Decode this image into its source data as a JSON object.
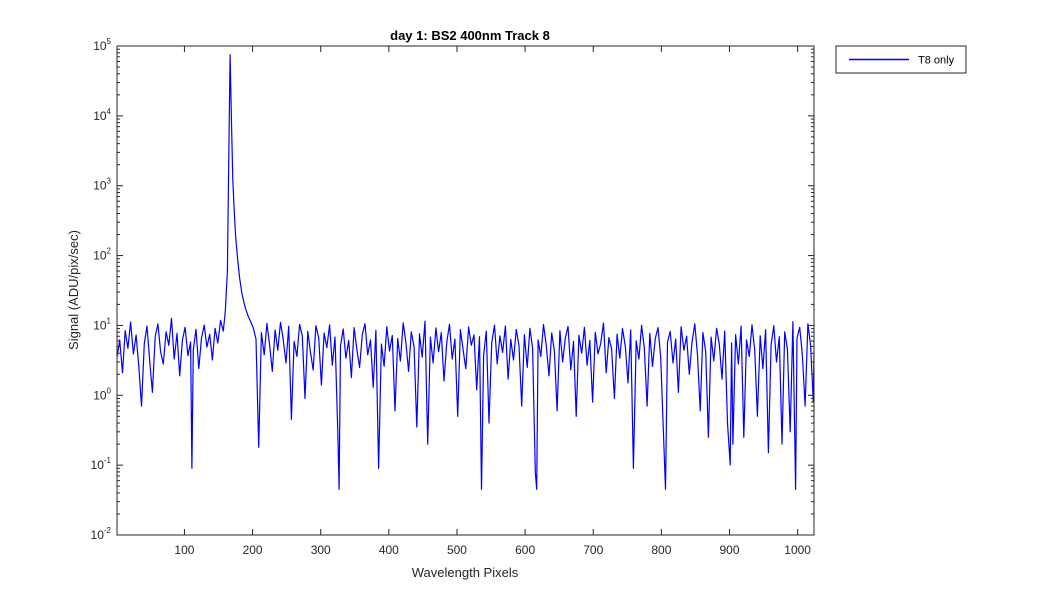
{
  "chart_data": {
    "type": "line",
    "title": "day 1: BS2  400nm  Track 8",
    "xlabel": "Wavelength Pixels",
    "ylabel": "Signal (ADU/pix/sec)",
    "xlim": [
      1,
      1024
    ],
    "ylim": [
      0.01,
      100000
    ],
    "yscale": "log",
    "grid": false,
    "legend_position": "outside-top-right",
    "x_ticks": [
      100,
      200,
      300,
      400,
      500,
      600,
      700,
      800,
      900,
      1000
    ],
    "y_ticks": [
      {
        "base": "10",
        "exp": "-2",
        "value": 0.01
      },
      {
        "base": "10",
        "exp": "-1",
        "value": 0.1
      },
      {
        "base": "10",
        "exp": "0",
        "value": 1
      },
      {
        "base": "10",
        "exp": "1",
        "value": 10
      },
      {
        "base": "10",
        "exp": "2",
        "value": 100
      },
      {
        "base": "10",
        "exp": "3",
        "value": 1000
      },
      {
        "base": "10",
        "exp": "4",
        "value": 10000
      },
      {
        "base": "10",
        "exp": "5",
        "value": 100000
      }
    ],
    "series": [
      {
        "name": "T8 only",
        "color": "#0000ff",
        "peak": {
          "x": 167,
          "y": 75000
        },
        "points": [
          [
            1,
            3.5
          ],
          [
            5,
            6.2
          ],
          [
            9,
            2.1
          ],
          [
            13,
            8.4
          ],
          [
            17,
            4.7
          ],
          [
            21,
            11.2
          ],
          [
            25,
            3.9
          ],
          [
            29,
            7.3
          ],
          [
            33,
            2.6
          ],
          [
            37,
            0.7
          ],
          [
            41,
            5.5
          ],
          [
            45,
            9.8
          ],
          [
            49,
            3.1
          ],
          [
            53,
            1.1
          ],
          [
            57,
            6.9
          ],
          [
            61,
            10.5
          ],
          [
            65,
            4.2
          ],
          [
            69,
            2.8
          ],
          [
            73,
            8.1
          ],
          [
            77,
            5.2
          ],
          [
            81,
            12.6
          ],
          [
            85,
            3.3
          ],
          [
            89,
            7.7
          ],
          [
            93,
            1.9
          ],
          [
            97,
            6.1
          ],
          [
            101,
            9.4
          ],
          [
            105,
            3.7
          ],
          [
            109,
            5.8
          ],
          [
            111,
            0.09
          ],
          [
            113,
            4.5
          ],
          [
            117,
            8.8
          ],
          [
            121,
            2.4
          ],
          [
            125,
            6.6
          ],
          [
            129,
            10.1
          ],
          [
            133,
            4.9
          ],
          [
            137,
            7.5
          ],
          [
            141,
            3.2
          ],
          [
            145,
            9.1
          ],
          [
            149,
            5.6
          ],
          [
            153,
            11.8
          ],
          [
            157,
            8.3
          ],
          [
            160,
            16
          ],
          [
            163,
            60
          ],
          [
            165,
            2000
          ],
          [
            167,
            75000
          ],
          [
            169,
            8000
          ],
          [
            171,
            1200
          ],
          [
            173,
            450
          ],
          [
            175,
            190
          ],
          [
            178,
            90
          ],
          [
            181,
            48
          ],
          [
            184,
            30
          ],
          [
            187,
            22
          ],
          [
            190,
            17
          ],
          [
            193,
            14
          ],
          [
            197,
            11.5
          ],
          [
            201,
            9.2
          ],
          [
            205,
            6.4
          ],
          [
            209,
            0.18
          ],
          [
            213,
            7.9
          ],
          [
            217,
            3.8
          ],
          [
            221,
            10.7
          ],
          [
            225,
            5.3
          ],
          [
            229,
            2.2
          ],
          [
            233,
            8.6
          ],
          [
            237,
            4.4
          ],
          [
            241,
            11.1
          ],
          [
            245,
            6.3
          ],
          [
            249,
            2.9
          ],
          [
            253,
            9.7
          ],
          [
            257,
            0.45
          ],
          [
            261,
            5.9
          ],
          [
            265,
            3.6
          ],
          [
            269,
            10.3
          ],
          [
            273,
            7.1
          ],
          [
            277,
            0.9
          ],
          [
            281,
            8.2
          ],
          [
            285,
            4.1
          ],
          [
            289,
            2.3
          ],
          [
            293,
            9.9
          ],
          [
            297,
            6.7
          ],
          [
            301,
            1.4
          ],
          [
            305,
            7.8
          ],
          [
            309,
            4.8
          ],
          [
            313,
            10.2
          ],
          [
            317,
            2.7
          ],
          [
            321,
            6.8
          ],
          [
            325,
            0.3
          ],
          [
            327,
            0.045
          ],
          [
            329,
            5.1
          ],
          [
            333,
            8.9
          ],
          [
            337,
            3.4
          ],
          [
            341,
            6.1
          ],
          [
            345,
            1.8
          ],
          [
            349,
            9.3
          ],
          [
            353,
            4.6
          ],
          [
            357,
            2.5
          ],
          [
            361,
            7.4
          ],
          [
            365,
            10.6
          ],
          [
            369,
            3.8
          ],
          [
            373,
            6.2
          ],
          [
            377,
            1.3
          ],
          [
            381,
            8.5
          ],
          [
            385,
            0.09
          ],
          [
            389,
            5.4
          ],
          [
            393,
            2.6
          ],
          [
            397,
            9.6
          ],
          [
            401,
            4.3
          ],
          [
            405,
            7.2
          ],
          [
            409,
            0.6
          ],
          [
            413,
            6.5
          ],
          [
            417,
            3.1
          ],
          [
            421,
            10.9
          ],
          [
            425,
            5.7
          ],
          [
            429,
            2.2
          ],
          [
            433,
            8.1
          ],
          [
            437,
            4.9
          ],
          [
            441,
            0.35
          ],
          [
            445,
            7.6
          ],
          [
            449,
            3.5
          ],
          [
            453,
            11.5
          ],
          [
            457,
            0.2
          ],
          [
            461,
            6.8
          ],
          [
            465,
            2.9
          ],
          [
            469,
            9.2
          ],
          [
            473,
            4.2
          ],
          [
            477,
            7.9
          ],
          [
            481,
            1.6
          ],
          [
            485,
            5.8
          ],
          [
            489,
            10.4
          ],
          [
            493,
            3.3
          ],
          [
            497,
            6.4
          ],
          [
            501,
            0.5
          ],
          [
            505,
            8.7
          ],
          [
            509,
            4.5
          ],
          [
            513,
            2.4
          ],
          [
            517,
            9.5
          ],
          [
            521,
            5.2
          ],
          [
            525,
            7.3
          ],
          [
            529,
            1.2
          ],
          [
            533,
            6.9
          ],
          [
            536,
            0.045
          ],
          [
            539,
            3.7
          ],
          [
            543,
            8.3
          ],
          [
            547,
            0.4
          ],
          [
            551,
            5.6
          ],
          [
            555,
            10.1
          ],
          [
            559,
            2.8
          ],
          [
            563,
            7.1
          ],
          [
            567,
            4.1
          ],
          [
            571,
            9.8
          ],
          [
            575,
            1.7
          ],
          [
            579,
            6.3
          ],
          [
            583,
            3.2
          ],
          [
            587,
            8.8
          ],
          [
            591,
            5.1
          ],
          [
            595,
            0.7
          ],
          [
            599,
            7.4
          ],
          [
            603,
            2.5
          ],
          [
            607,
            9.1
          ],
          [
            611,
            4.7
          ],
          [
            615,
            0.08
          ],
          [
            617,
            0.045
          ],
          [
            619,
            6.2
          ],
          [
            623,
            3.6
          ],
          [
            627,
            10.3
          ],
          [
            631,
            5.3
          ],
          [
            635,
            1.9
          ],
          [
            639,
            7.8
          ],
          [
            643,
            4.3
          ],
          [
            647,
            0.6
          ],
          [
            651,
            8.4
          ],
          [
            655,
            3.0
          ],
          [
            659,
            6.6
          ],
          [
            663,
            9.7
          ],
          [
            667,
            2.3
          ],
          [
            671,
            5.9
          ],
          [
            675,
            0.5
          ],
          [
            679,
            7.2
          ],
          [
            683,
            4.0
          ],
          [
            687,
            9.4
          ],
          [
            691,
            2.7
          ],
          [
            695,
            6.1
          ],
          [
            699,
            0.8
          ],
          [
            703,
            8.0
          ],
          [
            707,
            3.9
          ],
          [
            711,
            5.5
          ],
          [
            715,
            10.8
          ],
          [
            719,
            2.1
          ],
          [
            723,
            6.7
          ],
          [
            727,
            4.6
          ],
          [
            731,
            0.9
          ],
          [
            735,
            7.5
          ],
          [
            739,
            3.4
          ],
          [
            743,
            9.0
          ],
          [
            747,
            5.0
          ],
          [
            751,
            1.5
          ],
          [
            755,
            8.6
          ],
          [
            759,
            0.09
          ],
          [
            763,
            6.0
          ],
          [
            767,
            3.3
          ],
          [
            771,
            10.0
          ],
          [
            775,
            4.8
          ],
          [
            779,
            0.7
          ],
          [
            783,
            7.7
          ],
          [
            787,
            2.6
          ],
          [
            791,
            6.5
          ],
          [
            795,
            9.3
          ],
          [
            799,
            3.5
          ],
          [
            803,
            0.3
          ],
          [
            806,
            0.045
          ],
          [
            809,
            5.8
          ],
          [
            813,
            8.2
          ],
          [
            817,
            2.9
          ],
          [
            821,
            6.4
          ],
          [
            825,
            1.1
          ],
          [
            829,
            9.6
          ],
          [
            833,
            4.4
          ],
          [
            837,
            7.0
          ],
          [
            841,
            2.0
          ],
          [
            845,
            5.7
          ],
          [
            849,
            10.5
          ],
          [
            853,
            3.8
          ],
          [
            857,
            0.6
          ],
          [
            861,
            7.9
          ],
          [
            865,
            4.2
          ],
          [
            869,
            0.25
          ],
          [
            873,
            6.8
          ],
          [
            877,
            3.1
          ],
          [
            881,
            9.1
          ],
          [
            885,
            5.4
          ],
          [
            889,
            1.7
          ],
          [
            893,
            8.3
          ],
          [
            897,
            0.4
          ],
          [
            901,
            0.1
          ],
          [
            903,
            5.6
          ],
          [
            905,
            0.2
          ],
          [
            909,
            7.4
          ],
          [
            913,
            2.8
          ],
          [
            917,
            9.8
          ],
          [
            921,
            0.25
          ],
          [
            925,
            6.2
          ],
          [
            929,
            3.6
          ],
          [
            933,
            10.2
          ],
          [
            937,
            4.5
          ],
          [
            941,
            0.5
          ],
          [
            945,
            7.1
          ],
          [
            949,
            2.4
          ],
          [
            953,
            8.7
          ],
          [
            957,
            0.15
          ],
          [
            961,
            5.3
          ],
          [
            965,
            9.9
          ],
          [
            969,
            3.0
          ],
          [
            973,
            6.9
          ],
          [
            977,
            0.2
          ],
          [
            981,
            8.1
          ],
          [
            985,
            4.6
          ],
          [
            989,
            0.3
          ],
          [
            993,
            11.3
          ],
          [
            997,
            0.045
          ],
          [
            999,
            6.6
          ],
          [
            1003,
            9.4
          ],
          [
            1007,
            3.7
          ],
          [
            1011,
            0.7
          ],
          [
            1015,
            10.6
          ],
          [
            1019,
            5.2
          ],
          [
            1023,
            0.8
          ],
          [
            1024,
            4.1
          ]
        ]
      }
    ]
  }
}
